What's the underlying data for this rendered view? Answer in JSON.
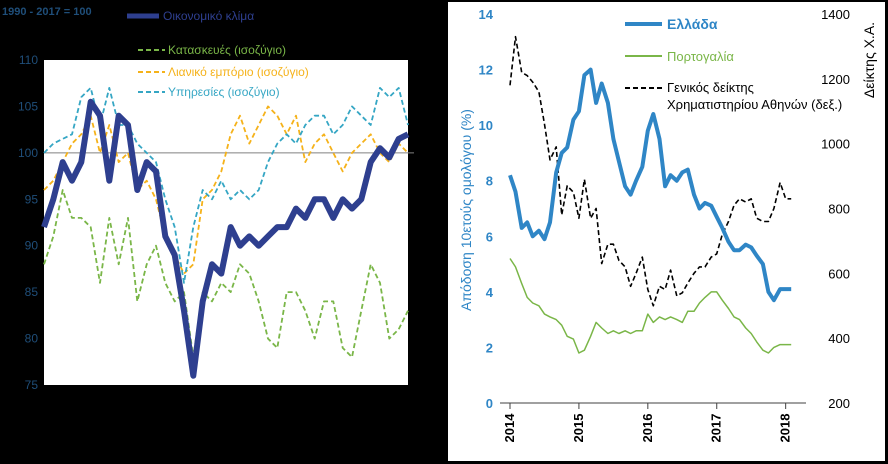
{
  "chart_data": [
    {
      "type": "line",
      "title": "",
      "base_label": "1990 - 2017 = 100",
      "ylim": [
        75,
        110
      ],
      "yticks": [
        75,
        80,
        85,
        90,
        95,
        100,
        105,
        110
      ],
      "reference_line": 100,
      "colors": {
        "background": "#000000",
        "plot": "#ffffff",
        "tick": "#1f4e79",
        "ref": "#808080"
      },
      "series": [
        {
          "name": "Οικονομικό κλίμα",
          "color": "#2e3f8f",
          "values": [
            92,
            95,
            99,
            97,
            99,
            105.5,
            104,
            97,
            104,
            103,
            96,
            99,
            98,
            91,
            89,
            83,
            76,
            84,
            88,
            87,
            92,
            90,
            91,
            90,
            91,
            92,
            92,
            94,
            93,
            95,
            95,
            93,
            95,
            94,
            95,
            99,
            100.5,
            99.5,
            101.5,
            102
          ]
        },
        {
          "name": "Κατασκευές (ισοζύγιο)",
          "color": "#7ab648",
          "values": [
            88,
            91,
            96,
            93,
            93,
            92,
            86,
            93,
            88,
            93,
            84,
            88,
            90,
            86,
            84,
            85,
            78,
            85,
            84,
            86,
            85,
            88,
            87,
            84,
            80,
            79,
            85,
            85,
            83,
            80,
            84,
            84,
            79,
            78,
            83,
            88,
            86,
            80,
            81,
            83
          ]
        },
        {
          "name": "Λιανικό εμπόριο (ισοζύγιο)",
          "color": "#f5b21a",
          "values": [
            96,
            97,
            99,
            101,
            102,
            104,
            100,
            103,
            99,
            100,
            96,
            97,
            95,
            91,
            89,
            87,
            88,
            95,
            96,
            98,
            102,
            104,
            101,
            103,
            105,
            104,
            102,
            104,
            99,
            101,
            102,
            100,
            98,
            100,
            101,
            102,
            100,
            99,
            101,
            100
          ]
        },
        {
          "name": "Υπηρεσίες (ισοζύγιο)",
          "color": "#35a6c4",
          "values": [
            100,
            101,
            101.5,
            102,
            106,
            107,
            103,
            107,
            103,
            103,
            101,
            100,
            99,
            95,
            92,
            86,
            92,
            96,
            95,
            97,
            95,
            96,
            95,
            96,
            99,
            101,
            102,
            101,
            103,
            104,
            104,
            102,
            103,
            105,
            104,
            103,
            107,
            106,
            107,
            103
          ]
        }
      ]
    },
    {
      "type": "line",
      "title": "",
      "xlabel": "",
      "ylabel": "Απόδοση 10ετούς ομολόγου (%)",
      "ylabel_right": "Δείκτης Χ.Α.",
      "ylim": [
        0,
        14
      ],
      "yticks": [
        0,
        2,
        4,
        6,
        8,
        10,
        12,
        14
      ],
      "ylim_right": [
        200,
        1400
      ],
      "yticks_right": [
        200,
        400,
        600,
        800,
        1000,
        1200,
        1400
      ],
      "xlim": [
        2014,
        2018.15
      ],
      "xticks": [
        "2014",
        "2015",
        "2016",
        "2017",
        "2018"
      ],
      "colors": {
        "background": "#ffffff",
        "tick_left": "#2f86c6",
        "tick_right": "#000000"
      },
      "series": [
        {
          "name": "Ελλάδα",
          "color": "#2f86c6",
          "axis": "left",
          "x": [
            2014.0,
            2014.08,
            2014.17,
            2014.25,
            2014.33,
            2014.42,
            2014.5,
            2014.58,
            2014.67,
            2014.75,
            2014.83,
            2014.92,
            2015.0,
            2015.08,
            2015.17,
            2015.25,
            2015.33,
            2015.42,
            2015.5,
            2015.58,
            2015.67,
            2015.75,
            2015.83,
            2015.92,
            2016.0,
            2016.08,
            2016.17,
            2016.25,
            2016.33,
            2016.42,
            2016.5,
            2016.58,
            2016.67,
            2016.75,
            2016.83,
            2016.92,
            2017.0,
            2017.08,
            2017.17,
            2017.25,
            2017.33,
            2017.42,
            2017.5,
            2017.58,
            2017.67,
            2017.75,
            2017.83,
            2017.92,
            2018.0,
            2018.08
          ],
          "values": [
            8.2,
            7.6,
            6.3,
            6.5,
            6.0,
            6.2,
            5.9,
            6.5,
            8.3,
            9.0,
            9.2,
            10.2,
            10.5,
            11.8,
            12.0,
            10.8,
            11.5,
            10.8,
            9.5,
            8.7,
            7.8,
            7.5,
            8.0,
            8.5,
            9.8,
            10.4,
            9.5,
            7.8,
            8.2,
            8.0,
            8.3,
            8.4,
            7.5,
            7.0,
            7.2,
            7.1,
            6.7,
            6.3,
            5.8,
            5.5,
            5.5,
            5.7,
            5.6,
            5.3,
            5.0,
            4.0,
            3.7,
            4.1,
            4.1,
            4.1
          ]
        },
        {
          "name": "Πορτογαλία",
          "color": "#7ab648",
          "axis": "left",
          "x": [
            2014.0,
            2014.08,
            2014.17,
            2014.25,
            2014.33,
            2014.42,
            2014.5,
            2014.58,
            2014.67,
            2014.75,
            2014.83,
            2014.92,
            2015.0,
            2015.08,
            2015.17,
            2015.25,
            2015.33,
            2015.42,
            2015.5,
            2015.58,
            2015.67,
            2015.75,
            2015.83,
            2015.92,
            2016.0,
            2016.08,
            2016.17,
            2016.25,
            2016.33,
            2016.42,
            2016.5,
            2016.58,
            2016.67,
            2016.75,
            2016.83,
            2016.92,
            2017.0,
            2017.08,
            2017.17,
            2017.25,
            2017.33,
            2017.42,
            2017.5,
            2017.58,
            2017.67,
            2017.75,
            2017.83,
            2017.92,
            2018.0,
            2018.08
          ],
          "values": [
            5.2,
            4.9,
            4.3,
            3.8,
            3.6,
            3.5,
            3.2,
            3.1,
            3.0,
            2.8,
            2.4,
            2.3,
            1.8,
            1.9,
            2.4,
            2.9,
            2.7,
            2.5,
            2.6,
            2.5,
            2.6,
            2.5,
            2.6,
            2.6,
            3.2,
            2.9,
            3.1,
            3.0,
            3.1,
            3.0,
            2.9,
            3.3,
            3.3,
            3.6,
            3.8,
            4.0,
            4.0,
            3.7,
            3.4,
            3.1,
            3.0,
            2.7,
            2.5,
            2.2,
            1.9,
            1.8,
            2.0,
            2.1,
            2.1,
            2.1
          ]
        },
        {
          "name": "Γενικός δείκτης Χρηματιστηρίου Αθηνών (δεξ.)",
          "color": "#000000",
          "axis": "right",
          "dashed": true,
          "x": [
            2014.0,
            2014.08,
            2014.17,
            2014.25,
            2014.33,
            2014.42,
            2014.5,
            2014.58,
            2014.67,
            2014.75,
            2014.83,
            2014.92,
            2015.0,
            2015.08,
            2015.17,
            2015.25,
            2015.33,
            2015.42,
            2015.5,
            2015.58,
            2015.67,
            2015.75,
            2015.83,
            2015.92,
            2016.0,
            2016.08,
            2016.17,
            2016.25,
            2016.33,
            2016.42,
            2016.5,
            2016.58,
            2016.67,
            2016.75,
            2016.83,
            2016.92,
            2017.0,
            2017.08,
            2017.17,
            2017.25,
            2017.33,
            2017.42,
            2017.5,
            2017.58,
            2017.67,
            2017.75,
            2017.83,
            2017.92,
            2018.0,
            2018.08
          ],
          "values": [
            1180,
            1330,
            1220,
            1210,
            1190,
            1160,
            1060,
            950,
            990,
            780,
            870,
            850,
            770,
            890,
            770,
            800,
            630,
            690,
            690,
            640,
            620,
            560,
            600,
            650,
            550,
            500,
            560,
            550,
            610,
            530,
            540,
            570,
            600,
            620,
            620,
            650,
            660,
            720,
            760,
            810,
            830,
            820,
            830,
            770,
            760,
            760,
            800,
            880,
            830,
            830
          ]
        }
      ]
    }
  ]
}
